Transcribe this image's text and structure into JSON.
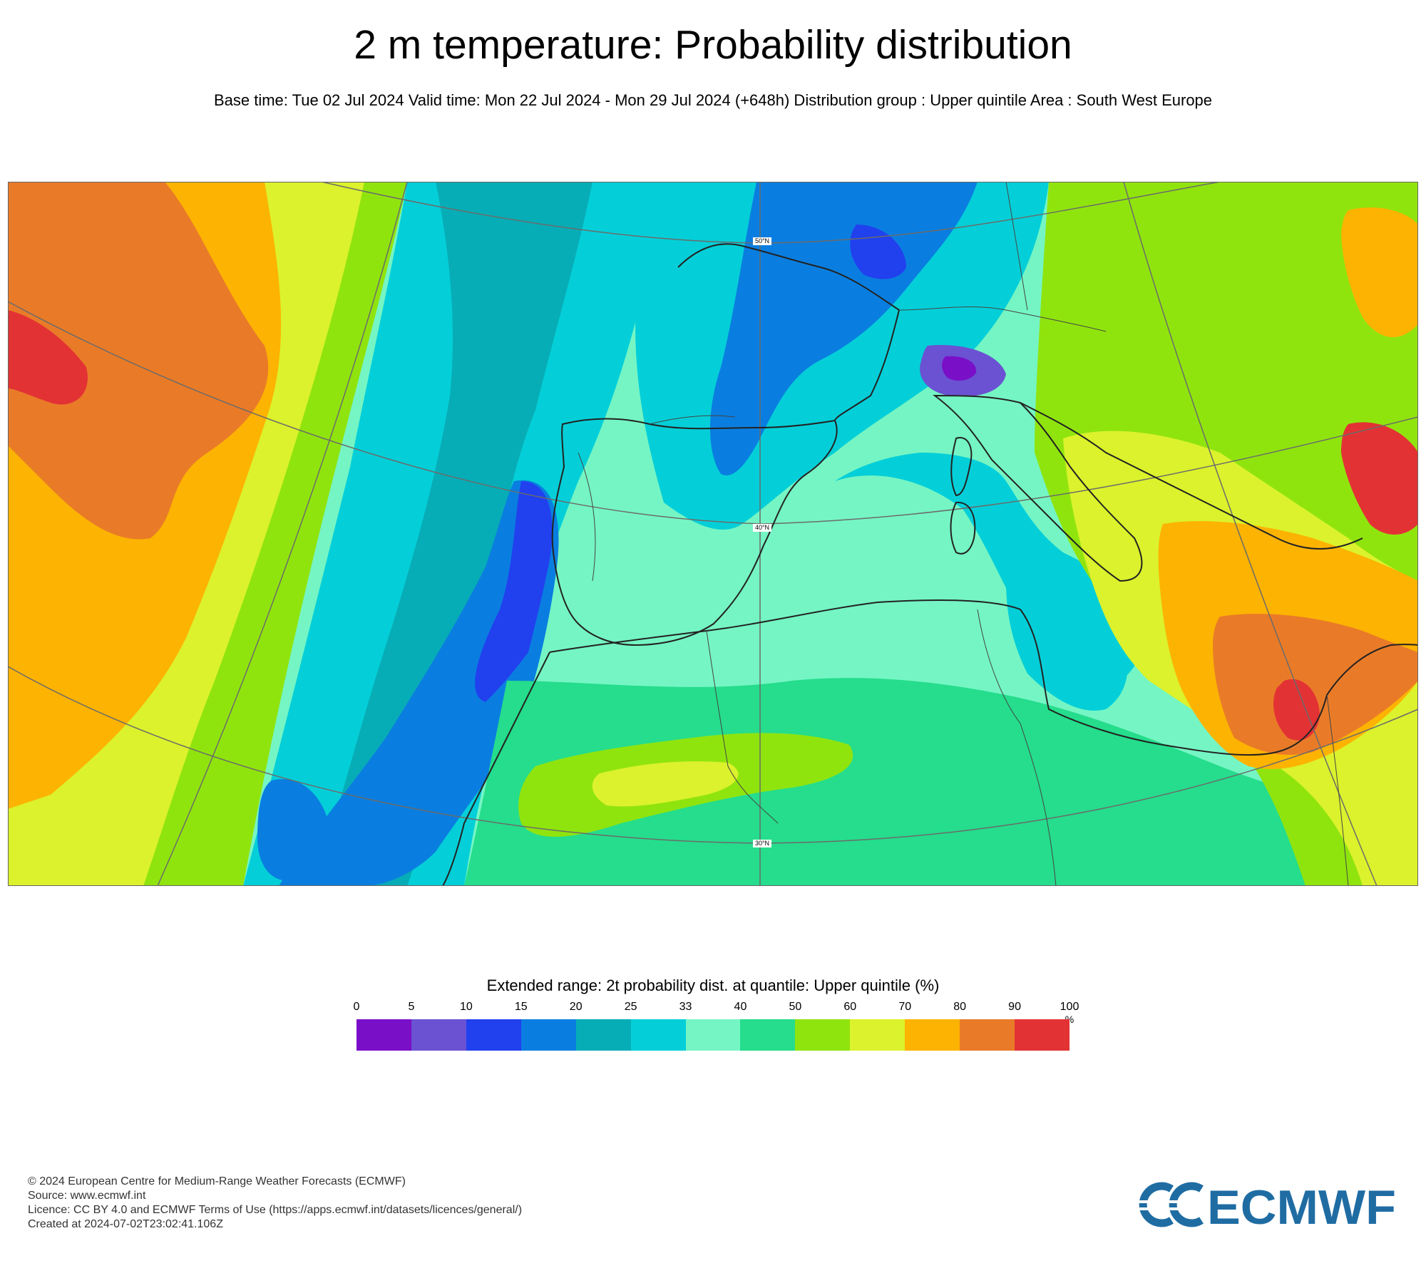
{
  "title": "2 m temperature: Probability distribution",
  "subtitle": "Base time: Tue 02 Jul 2024 Valid time: Mon 22 Jul 2024 - Mon 29 Jul 2024 (+648h) Distribution group : Upper quintile Area : South West Europe",
  "map": {
    "lat_labels": [
      "50°N",
      "40°N",
      "30°N"
    ]
  },
  "legend": {
    "title": "Extended range: 2t probability dist. at quantile: Upper quintile (%)",
    "ticks": [
      "0",
      "5",
      "10",
      "15",
      "20",
      "25",
      "33",
      "40",
      "50",
      "60",
      "70",
      "80",
      "90",
      "100"
    ],
    "unit": "%",
    "colors": [
      "#7a0fc8",
      "#6a52d2",
      "#2140ee",
      "#0a7ee0",
      "#07adb6",
      "#04cfd8",
      "#75f5c4",
      "#25dd8c",
      "#90e40e",
      "#dbf22c",
      "#fdb302",
      "#e97b28",
      "#e33234"
    ]
  },
  "footer": {
    "copyright": "© 2024 European Centre for Medium-Range Weather Forecasts (ECMWF)",
    "source": "Source: www.ecmwf.int",
    "licence": "Licence: CC BY 4.0 and ECMWF Terms of Use (https://apps.ecmwf.int/datasets/licences/general/)",
    "created": "Created at 2024-07-02T23:02:41.106Z"
  },
  "logo": {
    "text": "ECMWF",
    "color": "#1f6ca3"
  }
}
